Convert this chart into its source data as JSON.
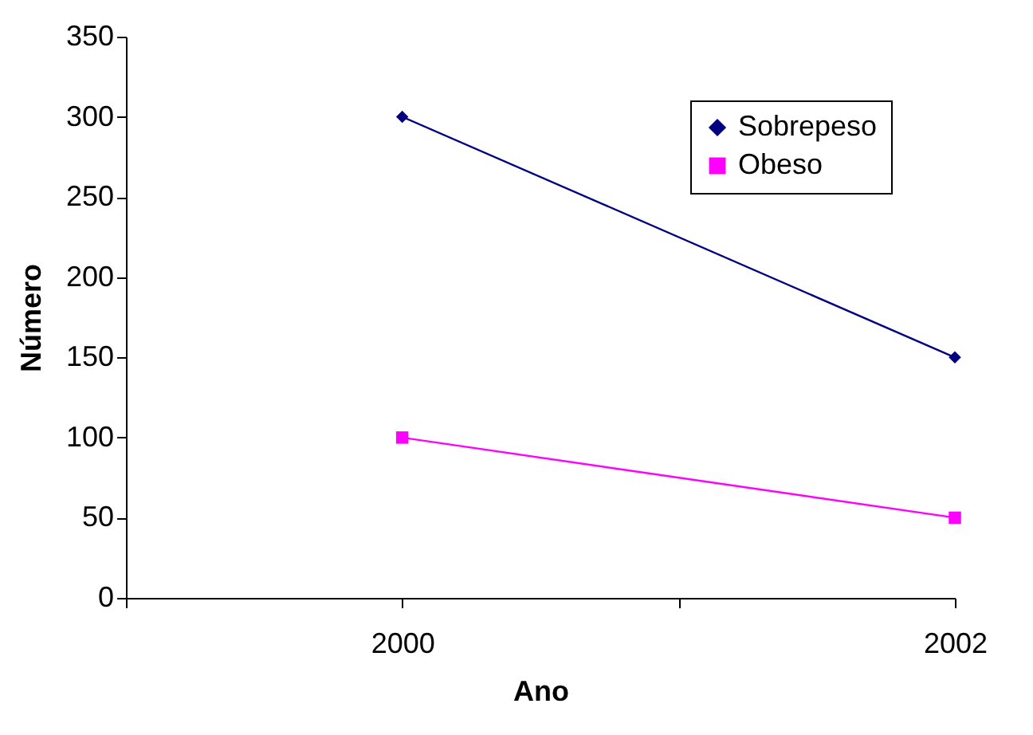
{
  "chart_data": {
    "type": "line",
    "xlabel": "Ano",
    "ylabel": "Número",
    "x": [
      2000,
      2002
    ],
    "series": [
      {
        "name": "Sobrepeso",
        "color": "#000080",
        "marker": "diamond",
        "values": [
          300,
          150
        ]
      },
      {
        "name": "Obeso",
        "color": "#ff00ff",
        "marker": "square",
        "values": [
          100,
          50
        ]
      }
    ],
    "xlim": [
      1999,
      2002
    ],
    "xticks": [
      {
        "value": 1999,
        "label": null
      },
      2000,
      {
        "value": 2001,
        "label": null
      },
      2002
    ],
    "ylim": [
      0,
      350
    ],
    "yticks": [
      0,
      50,
      100,
      150,
      200,
      250,
      300,
      350
    ],
    "grid": false,
    "legend": "top right"
  }
}
